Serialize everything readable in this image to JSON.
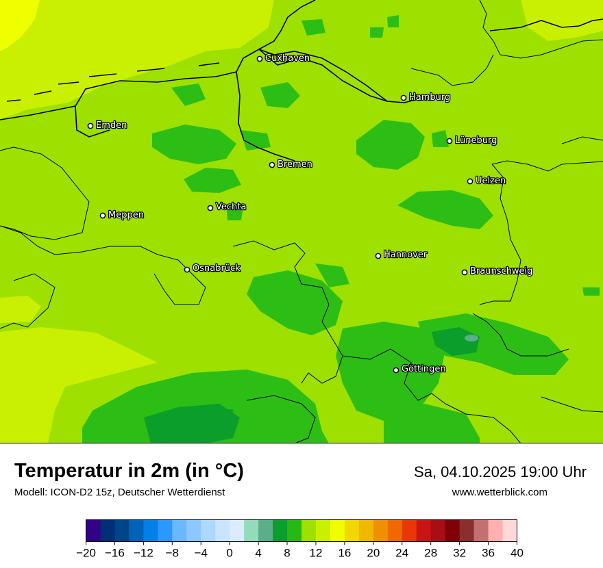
{
  "map": {
    "cities": [
      {
        "name": "Cuxhaven"
      },
      {
        "name": "Hamburg"
      },
      {
        "name": "Emden"
      },
      {
        "name": "Lüneburg"
      },
      {
        "name": "Bremen"
      },
      {
        "name": "Uelzen"
      },
      {
        "name": "Vechta"
      },
      {
        "name": "Meppen"
      },
      {
        "name": "Hannover"
      },
      {
        "name": "Osnabrück"
      },
      {
        "name": "Braunschweig"
      },
      {
        "name": "Göttingen"
      }
    ],
    "colors": {
      "warm_yellow_green": "#c8f000",
      "light_green": "#9ee000",
      "mid_green": "#2cbe14",
      "dark_green": "#0b9e2a",
      "yellow": "#f0ff00"
    }
  },
  "header": {
    "title": "Temperatur in 2m (in °C)",
    "subtitle": "Modell: ICON-D2 15z, Deutscher Wetterdienst",
    "datetime": "Sa, 04.10.2025 19:00 Uhr",
    "website": "www.wetterblick.com"
  },
  "scale": {
    "min": -20,
    "max": 40,
    "step": 2,
    "tick_labels": [
      "−20",
      "−16",
      "−12",
      "−8",
      "−4",
      "0",
      "4",
      "8",
      "12",
      "16",
      "20",
      "24",
      "28",
      "32",
      "36",
      "40"
    ],
    "colors": [
      "#330088",
      "#002e77",
      "#00448a",
      "#0062b8",
      "#0080e8",
      "#2a98ff",
      "#6ab8ff",
      "#8cc8ff",
      "#acd8ff",
      "#c8e4ff",
      "#dcecff",
      "#92dcbc",
      "#5aae8a",
      "#0a9e2e",
      "#28b814",
      "#9ee000",
      "#c8f000",
      "#f0ff00",
      "#f0d800",
      "#f0b800",
      "#f09000",
      "#f06800",
      "#e83808",
      "#c81414",
      "#a80e14",
      "#800008",
      "#8a2e2e",
      "#c47070",
      "#ffb0b0",
      "#ffd8d8"
    ]
  }
}
